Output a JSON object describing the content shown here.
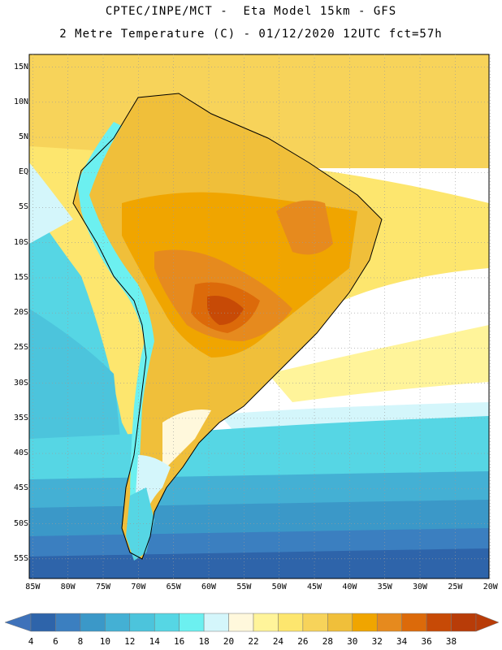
{
  "header": {
    "title_line1": "CPTEC/INPE/MCT -  Eta Model 15km - GFS",
    "title_line2": "2 Metre Temperature (C) - 01/12/2020 12UTC fct=57h"
  },
  "map": {
    "region": "South America",
    "lat_labels": [
      "15N",
      "10N",
      "5N",
      "EQ",
      "5S",
      "10S",
      "15S",
      "20S",
      "25S",
      "30S",
      "35S",
      "40S",
      "45S",
      "50S",
      "55S"
    ],
    "lat_values": [
      15,
      10,
      5,
      0,
      -5,
      -10,
      -15,
      -20,
      -25,
      -30,
      -35,
      -40,
      -45,
      -50,
      -55
    ],
    "lon_labels": [
      "85W",
      "80W",
      "75W",
      "70W",
      "65W",
      "60W",
      "55W",
      "50W",
      "45W",
      "40W",
      "35W",
      "30W",
      "25W",
      "20W"
    ],
    "lon_values": [
      -85,
      -80,
      -75,
      -70,
      -65,
      -60,
      -55,
      -50,
      -45,
      -40,
      -35,
      -30,
      -25,
      -20
    ],
    "extent": {
      "lon_min": -85.5,
      "lon_max": -20.2,
      "lat_min": -57.8,
      "lat_max": 16.8
    }
  },
  "colorbar": {
    "labels": [
      "4",
      "6",
      "8",
      "10",
      "12",
      "14",
      "16",
      "18",
      "20",
      "22",
      "24",
      "26",
      "28",
      "30",
      "32",
      "34",
      "36",
      "38"
    ],
    "colors": [
      "#2e64aa",
      "#3b7fc0",
      "#3b98c8",
      "#44b0d4",
      "#4cc4dc",
      "#56d6e4",
      "#6cf0f0",
      "#d4f6fb",
      "#fff8dc",
      "#fff49a",
      "#fde66e",
      "#f7d35a",
      "#f0bf3a",
      "#f0a500",
      "#e68a1e",
      "#dc6a0a",
      "#c74a06",
      "#b83c08"
    ],
    "low_color": "#3e72ba",
    "high_color": "#b83c08"
  }
}
